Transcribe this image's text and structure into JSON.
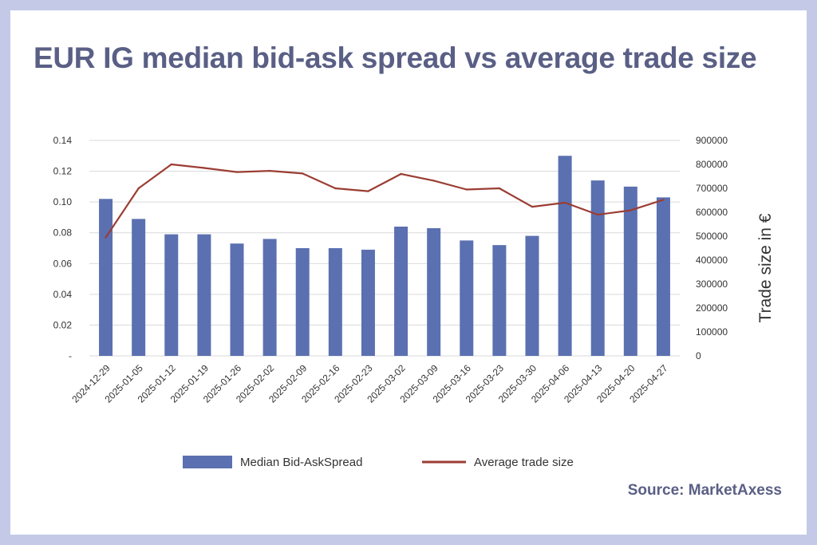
{
  "title": "EUR IG median bid-ask spread vs average trade size",
  "source": "Source: MarketAxess",
  "colors": {
    "background": "#c3c9e6",
    "bar": "#5b70b0",
    "line": "#9b3d33",
    "title": "#5a5f85",
    "grid": "#d9d9d9"
  },
  "chart_data": {
    "type": "bar",
    "title": "EUR IG median bid-ask spread vs average trade size",
    "categories": [
      "2024-12-29",
      "2025-01-05",
      "2025-01-12",
      "2025-01-19",
      "2025-01-26",
      "2025-02-02",
      "2025-02-09",
      "2025-02-16",
      "2025-02-23",
      "2025-03-02",
      "2025-03-09",
      "2025-03-16",
      "2025-03-23",
      "2025-03-30",
      "2025-04-06",
      "2025-04-13",
      "2025-04-20",
      "2025-04-27"
    ],
    "series": [
      {
        "name": "Median Bid-AskSpread",
        "type": "bar",
        "axis": "left",
        "values": [
          0.102,
          0.089,
          0.079,
          0.079,
          0.073,
          0.076,
          0.07,
          0.07,
          0.069,
          0.084,
          0.083,
          0.075,
          0.072,
          0.078,
          0.13,
          0.114,
          0.11,
          0.103
        ]
      },
      {
        "name": "Average trade size",
        "type": "line",
        "axis": "right",
        "values": [
          495000,
          700000,
          800000,
          785000,
          768000,
          773000,
          762000,
          700000,
          688000,
          760000,
          732000,
          695000,
          700000,
          623000,
          640000,
          590000,
          608000,
          652000
        ]
      }
    ],
    "y_left": {
      "min": 0,
      "max": 0.14,
      "ticks": [
        0,
        0.02,
        0.04,
        0.06,
        0.08,
        0.1,
        0.12,
        0.14
      ],
      "tick_labels": [
        "-",
        "0.02",
        "0.04",
        "0.06",
        "0.08",
        "0.10",
        "0.12",
        "0.14"
      ],
      "label": ""
    },
    "y_right": {
      "min": 0,
      "max": 900000,
      "ticks": [
        0,
        100000,
        200000,
        300000,
        400000,
        500000,
        600000,
        700000,
        800000,
        900000
      ],
      "tick_labels": [
        "0",
        "100000",
        "200000",
        "300000",
        "400000",
        "500000",
        "600000",
        "700000",
        "800000",
        "900000"
      ],
      "label": "Trade size in €"
    },
    "grid": true,
    "legend": "bottom",
    "legend_entries": [
      {
        "label": "Median Bid-AskSpread",
        "kind": "bar"
      },
      {
        "label": "Average trade size",
        "kind": "line"
      }
    ]
  }
}
